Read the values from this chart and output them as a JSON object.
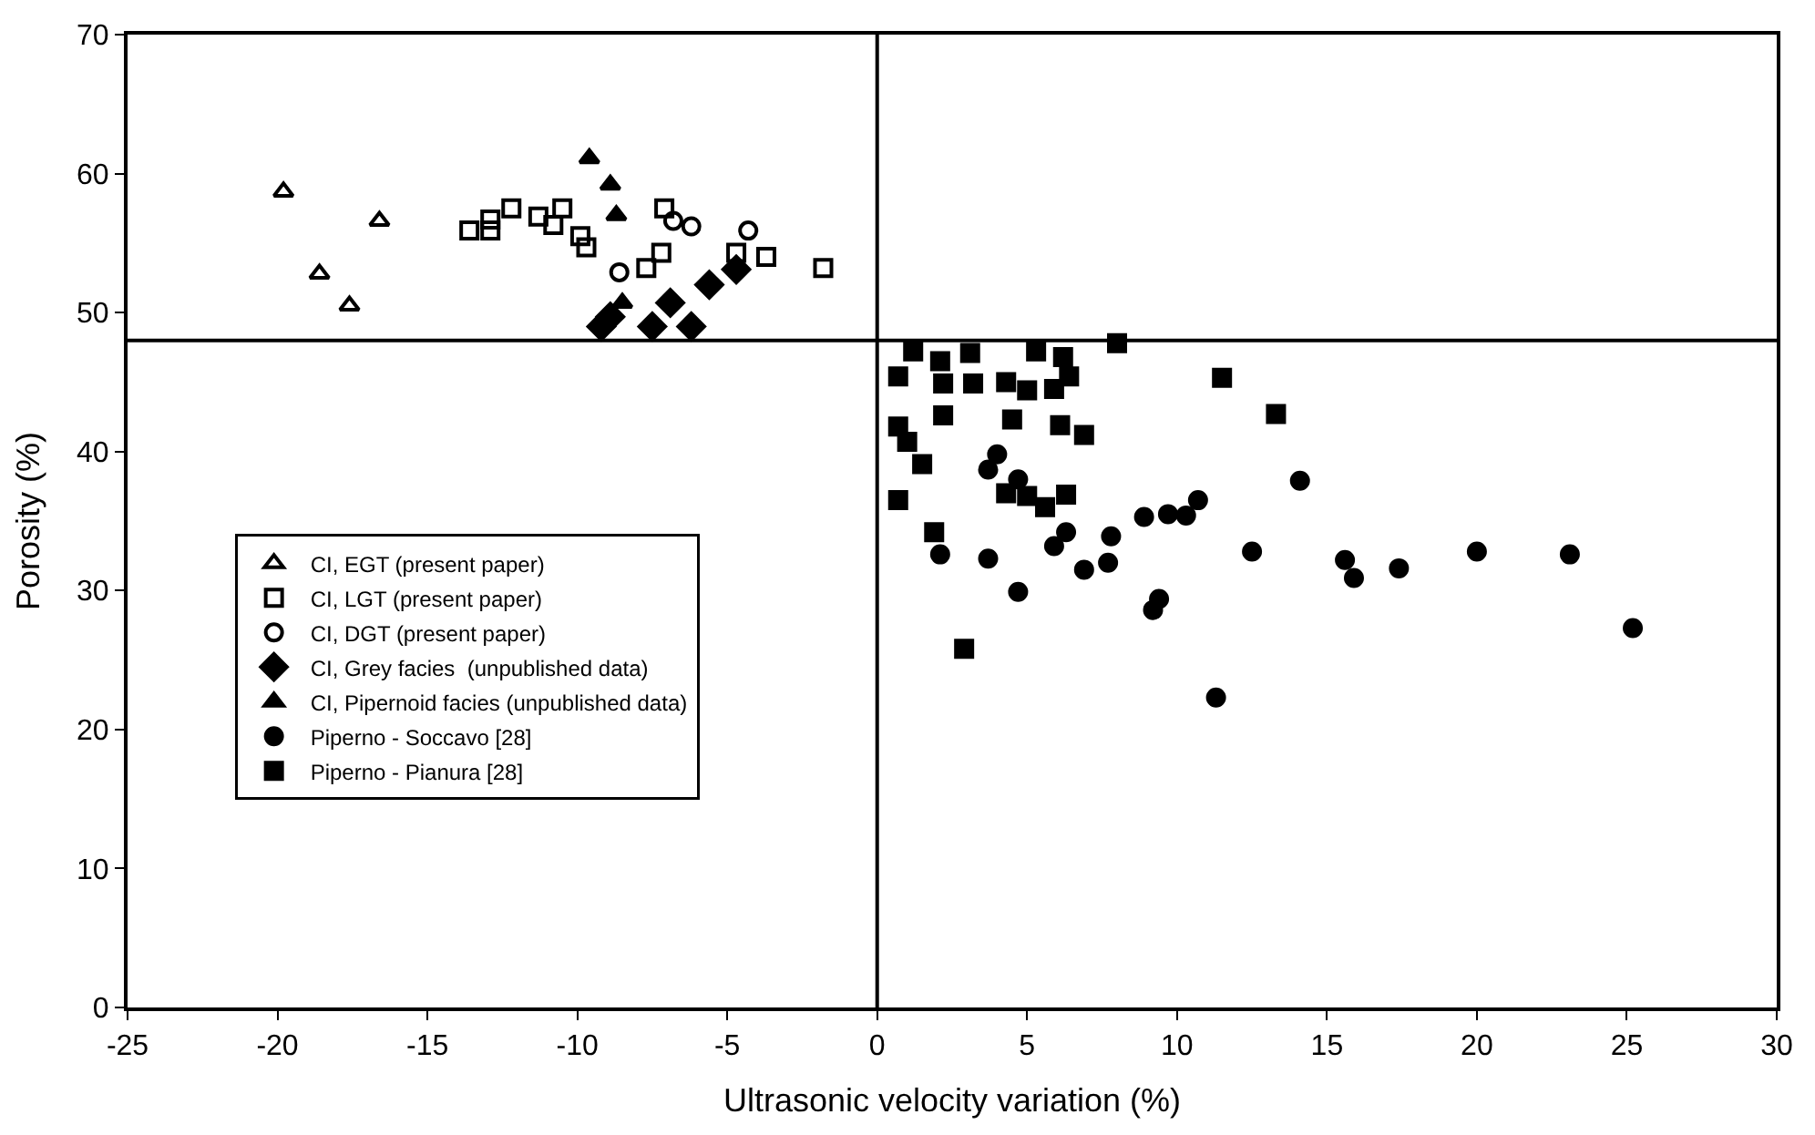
{
  "chart_data": {
    "type": "scatter",
    "xlabel": "Ultrasonic velocity variation (%)",
    "ylabel": "Porosity (%)",
    "xlim": [
      -25,
      30
    ],
    "xticks": [
      -25,
      -20,
      -15,
      -10,
      -5,
      0,
      5,
      10,
      15,
      20,
      25,
      30
    ],
    "ylim": [
      0,
      70
    ],
    "yticks": [
      0,
      10,
      20,
      30,
      40,
      50,
      60,
      70
    ],
    "legend": "left",
    "ref_lines": [
      {
        "axis": "x",
        "value": 0,
        "color": "#000000"
      },
      {
        "axis": "y",
        "value": 48,
        "color": "#000000"
      }
    ],
    "series": [
      {
        "name": "CI, EGT (present paper)",
        "color": "#000000",
        "marker": "triangle-open",
        "x": [
          -19.8,
          -16.6,
          -18.6,
          -17.6
        ],
        "values": [
          58.7,
          56.6,
          52.8,
          50.5
        ]
      },
      {
        "name": "CI, LGT (present paper)",
        "color": "#000000",
        "marker": "square-open",
        "x": [
          -13.6,
          -12.9,
          -12.9,
          -12.2,
          -11.3,
          -10.8,
          -10.5,
          -9.9,
          -9.7,
          -7.1,
          -7.2,
          -7.7,
          -4.7,
          -3.7,
          -1.8
        ],
        "values": [
          55.9,
          55.9,
          56.7,
          57.5,
          56.9,
          56.3,
          57.5,
          55.5,
          54.7,
          57.5,
          54.3,
          53.2,
          54.3,
          54.0,
          53.2
        ]
      },
      {
        "name": "CI, DGT (present paper)",
        "color": "#000000",
        "marker": "circle-open",
        "x": [
          -6.8,
          -6.2,
          -8.6,
          -4.3
        ],
        "values": [
          56.6,
          56.2,
          52.9,
          55.9
        ]
      },
      {
        "name": "CI, Grey facies  (unpublished data)",
        "color": "#000000",
        "marker": "diamond",
        "x": [
          -9.2,
          -8.9,
          -7.5,
          -6.9,
          -6.2,
          -5.6,
          -4.7
        ],
        "values": [
          49.0,
          49.7,
          49.0,
          50.7,
          49.0,
          52.0,
          53.1
        ]
      },
      {
        "name": "CI, Pipernoid facies (unpublished data)",
        "color": "#000000",
        "marker": "triangle",
        "x": [
          -9.6,
          -8.9,
          -8.7,
          -8.5
        ],
        "values": [
          61.1,
          59.2,
          57.0,
          50.7
        ]
      },
      {
        "name": "Piperno - Soccavo [28]",
        "color": "#000000",
        "marker": "circle",
        "x": [
          4.0,
          3.7,
          4.7,
          2.1,
          3.7,
          4.7,
          5.9,
          6.3,
          6.9,
          7.8,
          7.7,
          8.9,
          9.7,
          10.3,
          10.7,
          14.1,
          12.5,
          9.4,
          9.2,
          15.6,
          15.9,
          17.4,
          20.0,
          23.1,
          25.2,
          11.3
        ],
        "values": [
          39.8,
          38.7,
          38.0,
          32.6,
          32.3,
          29.9,
          33.2,
          34.2,
          31.5,
          33.9,
          32.0,
          35.3,
          35.5,
          35.4,
          36.5,
          37.9,
          32.8,
          29.4,
          28.6,
          32.2,
          30.9,
          31.6,
          32.8,
          32.6,
          27.3,
          22.3
        ]
      },
      {
        "name": "Piperno - Pianura [28]",
        "color": "#000000",
        "marker": "square",
        "x": [
          1.2,
          0.7,
          2.1,
          2.2,
          3.1,
          3.2,
          4.3,
          5.0,
          5.3,
          6.2,
          6.4,
          5.9,
          8.0,
          11.5,
          13.3,
          2.2,
          4.5,
          6.1,
          6.9,
          0.7,
          1.0,
          1.5,
          0.7,
          4.3,
          5.0,
          5.6,
          6.3,
          1.9,
          2.9
        ],
        "values": [
          47.2,
          45.4,
          46.5,
          44.9,
          47.1,
          44.9,
          45.0,
          44.4,
          47.2,
          46.8,
          45.4,
          44.5,
          47.8,
          45.3,
          42.7,
          42.6,
          42.3,
          41.9,
          41.2,
          41.8,
          40.7,
          39.1,
          36.5,
          37.0,
          36.8,
          36.0,
          36.9,
          34.2,
          25.8
        ]
      }
    ]
  }
}
